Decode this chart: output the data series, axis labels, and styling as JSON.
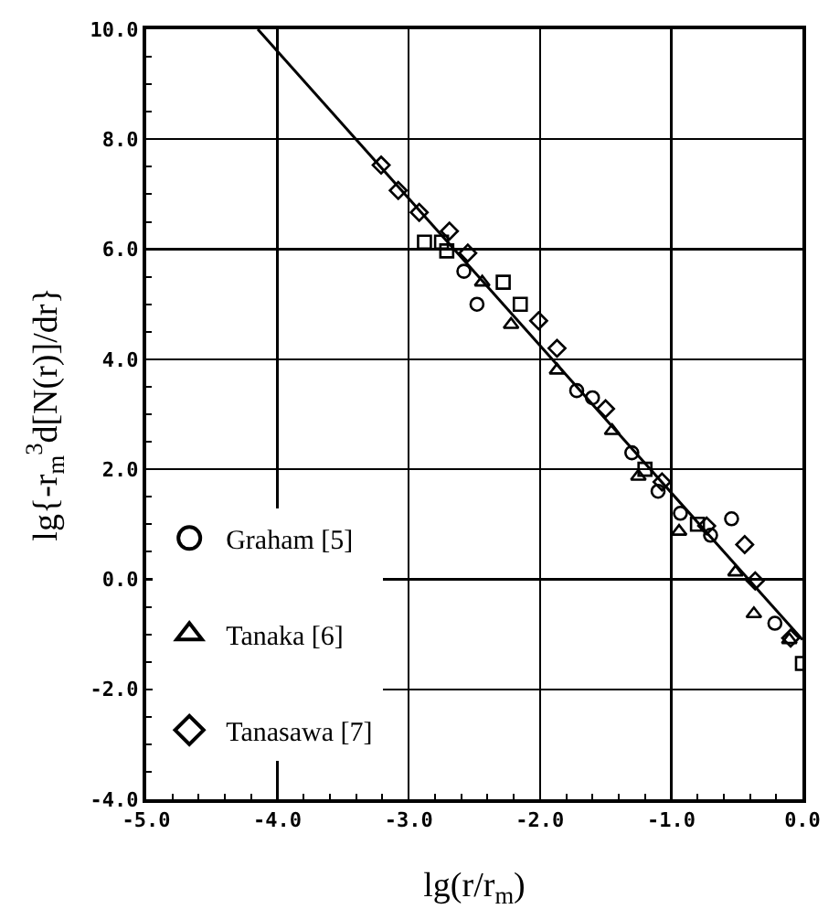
{
  "chart_data": {
    "type": "scatter",
    "xlabel": "lg(r/r$_{m}$)",
    "ylabel": "lg{-r$_{m}$$^{3}$d[N(r)]/dr}",
    "xlim": [
      -5,
      0
    ],
    "ylim": [
      -4,
      10
    ],
    "xticks": [
      {
        "value": -5,
        "label": "-5.0"
      },
      {
        "value": -4,
        "label": "-4.0"
      },
      {
        "value": -3,
        "label": "-3.0"
      },
      {
        "value": -2,
        "label": "-2.0"
      },
      {
        "value": -1,
        "label": "-1.0"
      },
      {
        "value": 0,
        "label": "0.0"
      }
    ],
    "yticks": [
      {
        "value": -4,
        "label": "-4.0"
      },
      {
        "value": -2,
        "label": "-2.0"
      },
      {
        "value": 0,
        "label": "0.0"
      },
      {
        "value": 2,
        "label": "2.0"
      },
      {
        "value": 4,
        "label": "4.0"
      },
      {
        "value": 6,
        "label": "6.0"
      },
      {
        "value": 8,
        "label": "8.0"
      },
      {
        "value": 10,
        "label": "10.0"
      }
    ],
    "grid": true,
    "legend": "left",
    "series": [
      {
        "type": "line",
        "color": "#000000",
        "x": [
          -4.15,
          0
        ],
        "values": [
          10,
          -1.1
        ],
        "line_style": "solid",
        "marker": "none"
      },
      {
        "name": "Graham [5]",
        "color": "#000000",
        "marker": "circle",
        "x": [
          -2.58,
          -2.48,
          -1.72,
          -1.6,
          -1.3,
          -1.1,
          -0.93,
          -0.7,
          -0.54,
          -0.21
        ],
        "values": [
          5.6,
          5.0,
          3.43,
          3.3,
          2.3,
          1.6,
          1.2,
          0.8,
          1.1,
          -0.8
        ]
      },
      {
        "name": "Tanaka [6]",
        "color": "#000000",
        "marker": "triangle",
        "x": [
          -2.44,
          -2.22,
          -1.87,
          -1.45,
          -1.25,
          -0.94,
          -0.51,
          -0.37,
          -0.1
        ],
        "values": [
          5.4,
          4.63,
          3.8,
          2.7,
          1.87,
          0.87,
          0.13,
          -0.63,
          -1.1
        ]
      },
      {
        "name": "Tanasawa [7]",
        "color": "#000000",
        "marker": "diamond",
        "x": [
          -3.21,
          -3.08,
          -2.92,
          -2.69,
          -2.55,
          -2.01,
          -1.87,
          -1.5,
          -1.07,
          -0.73,
          -0.44,
          -0.36,
          -0.09
        ],
        "values": [
          7.53,
          7.07,
          6.67,
          6.33,
          5.93,
          4.7,
          4.2,
          3.1,
          1.77,
          0.97,
          0.63,
          -0.03,
          -1.07
        ]
      },
      {
        "color": "#000000",
        "marker": "square",
        "x": [
          -2.88,
          -2.75,
          -2.71,
          -2.28,
          -2.15,
          -1.2,
          -0.8,
          0
        ],
        "values": [
          6.13,
          6.13,
          5.97,
          5.4,
          5.0,
          2.0,
          1.0,
          -1.53
        ]
      }
    ]
  }
}
